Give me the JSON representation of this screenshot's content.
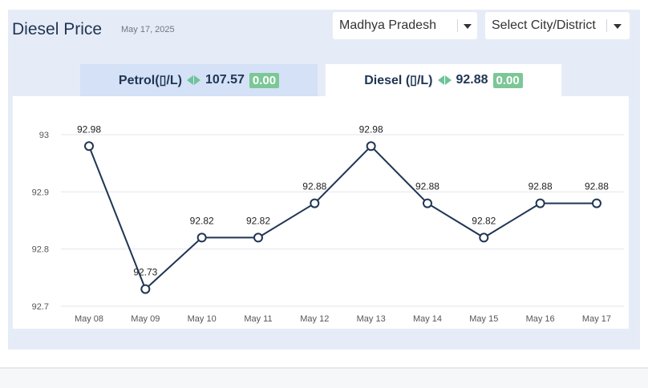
{
  "header": {
    "title": "Diesel Price",
    "date": "May 17, 2025"
  },
  "filters": {
    "state": "Madhya Pradesh",
    "city": "Select City/District"
  },
  "tabs": [
    {
      "label": "Petrol(▯/L)",
      "price": "107.57",
      "change": "0.00",
      "active": false
    },
    {
      "label": "Diesel (▯/L)",
      "price": "92.88",
      "change": "0.00",
      "active": true
    }
  ],
  "colors": {
    "line": "#1f3553",
    "accent_green": "#7cc796",
    "grid": "#e3e6eb"
  },
  "chart_data": {
    "type": "line",
    "categories": [
      "May 08",
      "May 09",
      "May 10",
      "May 11",
      "May 12",
      "May 13",
      "May 14",
      "May 15",
      "May 16",
      "May 17"
    ],
    "values": [
      92.98,
      92.73,
      92.82,
      92.82,
      92.88,
      92.98,
      92.88,
      92.82,
      92.88,
      92.88
    ],
    "data_labels": [
      "92.98",
      "92.73",
      "92.82",
      "92.82",
      "92.88",
      "92.98",
      "92.88",
      "92.82",
      "92.88",
      "92.88"
    ],
    "yticks": [
      "92.7",
      "92.8",
      "92.9",
      "93"
    ],
    "ylim": [
      92.7,
      93.0
    ],
    "grid": true,
    "markers": "hollow-circle"
  }
}
